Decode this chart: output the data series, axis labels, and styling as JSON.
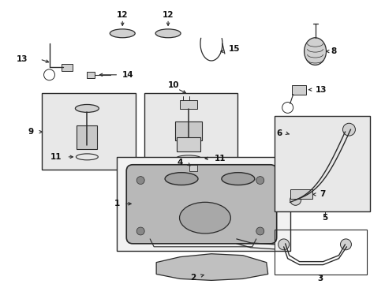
{
  "bg_color": "#ffffff",
  "line_color": "#2a2a2a",
  "text_color": "#111111",
  "box_fill": "#e8e8e8",
  "part_fill": "#d0d0d0",
  "fs": 7.5,
  "fig_w": 4.89,
  "fig_h": 3.6,
  "dpi": 100
}
